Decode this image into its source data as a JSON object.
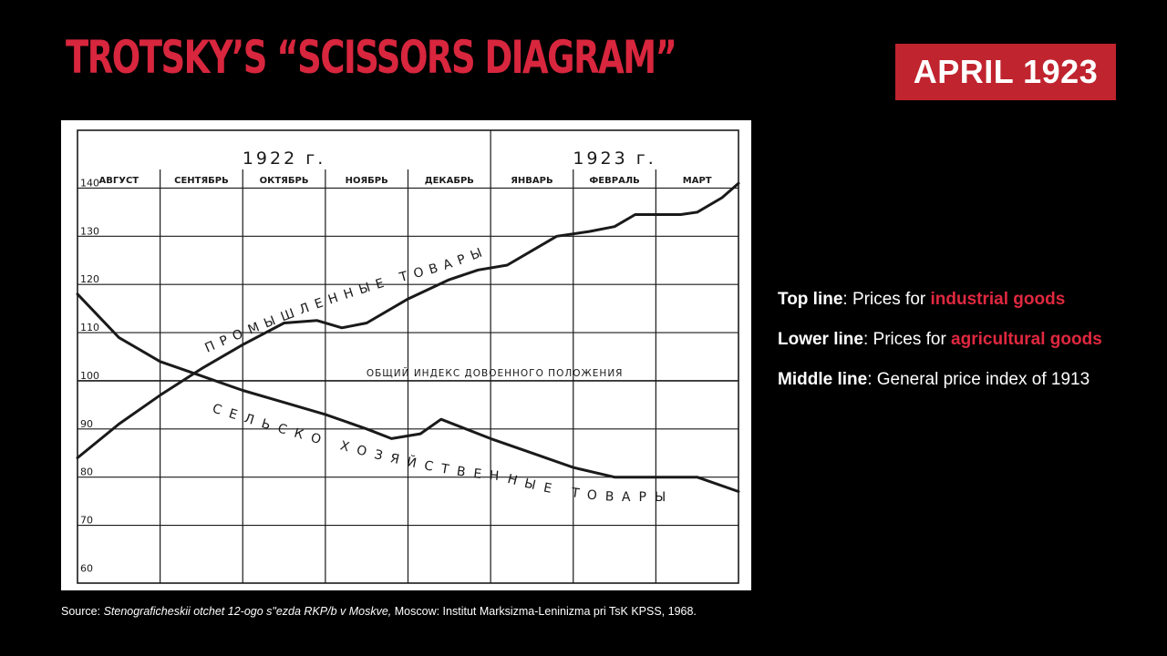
{
  "title": "TROTSKY’S “SCISSORS DIAGRAM”",
  "badge": "APRIL 1923",
  "legend": [
    {
      "term": "Top line",
      "prefix": ": Prices for ",
      "highlight": "industrial goods",
      "suffix": ""
    },
    {
      "term": "Lower line",
      "prefix": ": Prices for ",
      "highlight": "agricultural goods",
      "suffix": ""
    },
    {
      "term": "Middle line",
      "prefix": ": General price index of 1913",
      "highlight": "",
      "suffix": ""
    }
  ],
  "source": {
    "prefix": "Source: ",
    "italic": "Stenograficheskii otchet 12-ogo s\"ezda RKP/b v Moskve,",
    "rest": " Moscow: Institut Marksizma-Leninizma pri TsK KPSS, 1968."
  },
  "colors": {
    "accent": "#e0283f",
    "badge_bg": "#c0242e",
    "title": "#d7263d"
  },
  "chart_data": {
    "type": "line",
    "years": [
      "1922 г.",
      "1923 г."
    ],
    "categories": [
      "АВГУСТ",
      "СЕНТЯБРЬ",
      "ОКТЯБРЬ",
      "НОЯБРЬ",
      "ДЕКАБРЬ",
      "ЯНВАРЬ",
      "ФЕВРАЛЬ",
      "МАРТ"
    ],
    "x_range": [
      0,
      8
    ],
    "y_ticks": [
      140,
      130,
      120,
      110,
      100,
      90,
      80,
      70,
      60
    ],
    "ylim": [
      58,
      152
    ],
    "grid": true,
    "series": [
      {
        "name": "ПРОМЫШЛЕННЫЕ ТОВАРЫ",
        "points": [
          [
            0,
            84
          ],
          [
            0.5,
            91
          ],
          [
            1.0,
            97
          ],
          [
            1.5,
            102.5
          ],
          [
            2.0,
            107.5
          ],
          [
            2.5,
            112
          ],
          [
            2.9,
            112.5
          ],
          [
            3.2,
            111
          ],
          [
            3.5,
            112
          ],
          [
            4.0,
            117
          ],
          [
            4.5,
            121
          ],
          [
            4.85,
            123
          ],
          [
            5.2,
            124
          ],
          [
            5.5,
            127
          ],
          [
            5.8,
            130
          ],
          [
            6.2,
            131
          ],
          [
            6.5,
            132
          ],
          [
            6.75,
            134.5
          ],
          [
            7.3,
            134.5
          ],
          [
            7.5,
            135
          ],
          [
            7.8,
            138
          ],
          [
            8.0,
            141
          ]
        ]
      },
      {
        "name": "СЕЛЬСКО ХОЗЯЙСТВЕННЫЕ ТОВАРЫ",
        "points": [
          [
            0,
            118
          ],
          [
            0.5,
            109
          ],
          [
            1.0,
            104
          ],
          [
            1.5,
            101
          ],
          [
            2.0,
            98
          ],
          [
            2.5,
            95.5
          ],
          [
            3.0,
            93
          ],
          [
            3.5,
            90
          ],
          [
            3.8,
            88
          ],
          [
            4.15,
            89
          ],
          [
            4.4,
            92
          ],
          [
            5.0,
            88
          ],
          [
            5.5,
            85
          ],
          [
            6.0,
            82
          ],
          [
            6.5,
            80
          ],
          [
            7.0,
            80
          ],
          [
            7.5,
            80
          ],
          [
            8.0,
            77
          ]
        ]
      }
    ],
    "reference_line": {
      "label": "ОБЩИЙ ИНДЕКС ДОВОЕННОГО ПОЛОЖЕНИЯ",
      "value": 100
    }
  }
}
